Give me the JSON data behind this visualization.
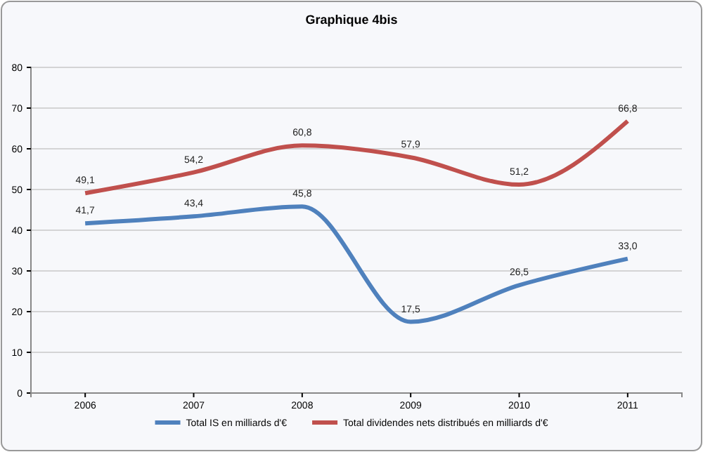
{
  "chart_data": {
    "type": "line",
    "title": "Graphique 4bis",
    "categories": [
      "2006",
      "2007",
      "2008",
      "2009",
      "2010",
      "2011"
    ],
    "series": [
      {
        "name": "Total IS en milliards d'€",
        "color": "#4f81bd",
        "values": [
          41.7,
          43.4,
          45.8,
          17.5,
          26.5,
          33.0
        ],
        "value_labels": [
          "41,7",
          "43,4",
          "45,8",
          "17,5",
          "26,5",
          "33,0"
        ]
      },
      {
        "name": "Total dividendes nets distribués en milliards d'€",
        "color": "#c0504d",
        "values": [
          49.1,
          54.2,
          60.8,
          57.9,
          51.2,
          66.8
        ],
        "value_labels": [
          "49,1",
          "54,2",
          "60,8",
          "57,9",
          "51,2",
          "66,8"
        ]
      }
    ],
    "ylim": [
      0,
      80
    ],
    "yticks": [
      0,
      10,
      20,
      30,
      40,
      50,
      60,
      70,
      80
    ],
    "grid": "y",
    "legend": "bottom",
    "marker": "none",
    "line_style": "solid"
  }
}
